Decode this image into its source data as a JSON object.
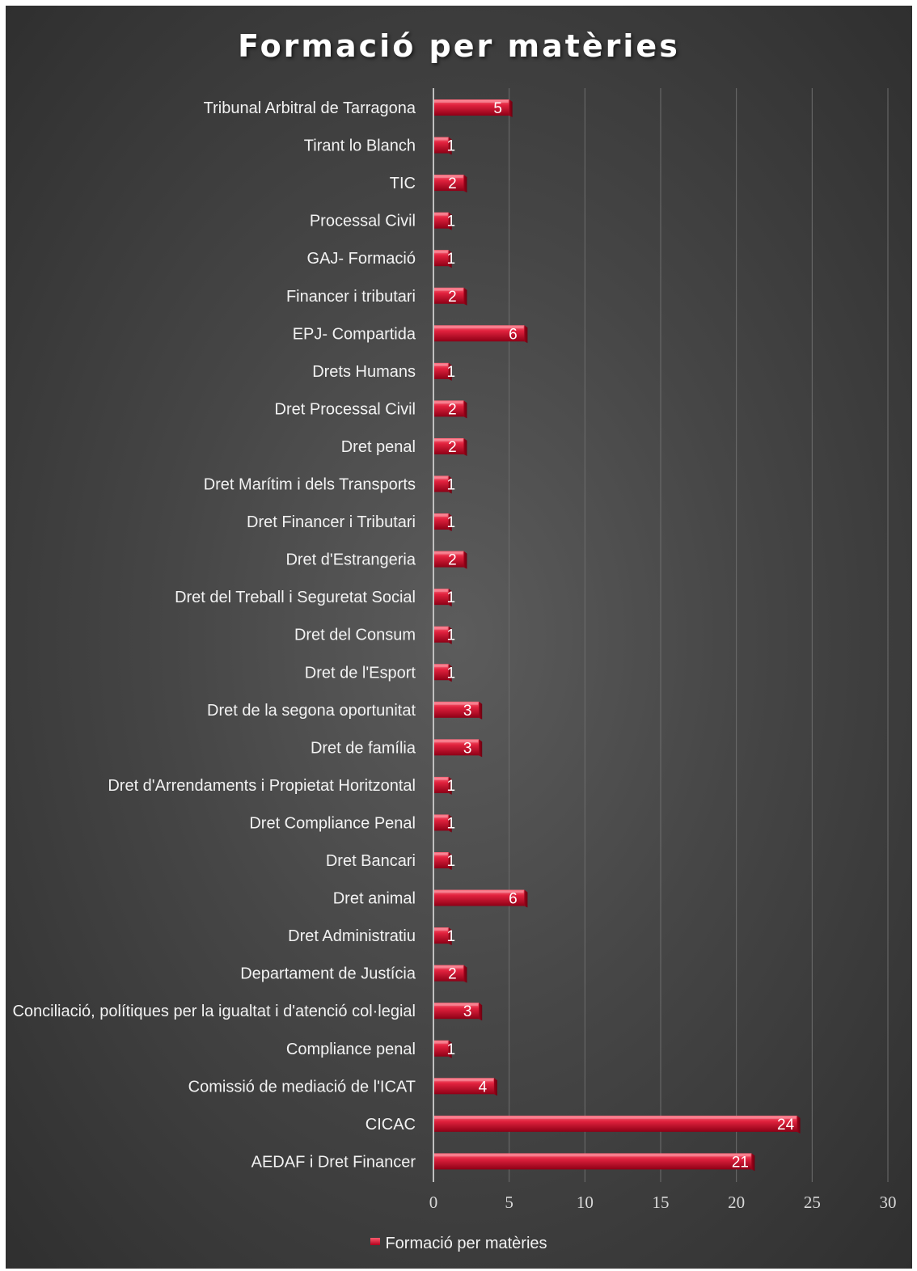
{
  "chart_data": {
    "type": "bar",
    "orientation": "horizontal",
    "title": "Formació per matèries",
    "categories": [
      "Tribunal Arbitral de Tarragona",
      "Tirant lo Blanch",
      "TIC",
      "Processal Civil",
      "GAJ- Formació",
      "Financer i tributari",
      "EPJ- Compartida",
      "Drets Humans",
      "Dret Processal Civil",
      "Dret penal",
      "Dret Marítim i dels Transports",
      "Dret Financer i Tributari",
      "Dret d'Estrangeria",
      "Dret del Treball i Seguretat Social",
      "Dret del Consum",
      "Dret de l'Esport",
      "Dret de la segona oportunitat",
      "Dret de família",
      "Dret d'Arrendaments i Propietat Horitzontal",
      "Dret Compliance Penal",
      "Dret Bancari",
      "Dret animal",
      "Dret Administratiu",
      "Departament de Justícia",
      "Conciliació, polítiques per la igualtat i d'atenció col·legial",
      "Compliance penal",
      "Comissió de mediació de l'ICAT",
      "CICAC",
      "AEDAF i Dret Financer"
    ],
    "series": [
      {
        "name": "Formació per matèries",
        "values": [
          5,
          1,
          2,
          1,
          1,
          2,
          6,
          1,
          2,
          2,
          1,
          1,
          2,
          1,
          1,
          1,
          3,
          3,
          1,
          1,
          1,
          6,
          1,
          2,
          3,
          1,
          4,
          24,
          21
        ]
      }
    ],
    "x_ticks": [
      "0",
      "5",
      "10",
      "15",
      "20",
      "25",
      "30"
    ],
    "xlim": [
      0,
      30
    ],
    "grid": true,
    "legend_position": "bottom",
    "bar_color": "#c8102e"
  }
}
